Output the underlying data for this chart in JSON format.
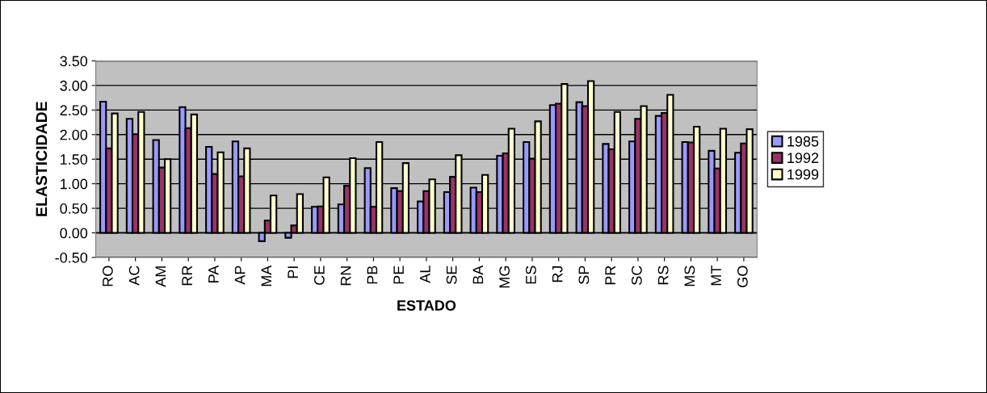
{
  "chart_data": {
    "type": "bar",
    "xlabel": "ESTADO",
    "ylabel": "ELASTICIDADE",
    "categories": [
      "RO",
      "AC",
      "AM",
      "RR",
      "PA",
      "AP",
      "MA",
      "PI",
      "CE",
      "RN",
      "PB",
      "PE",
      "AL",
      "SE",
      "BA",
      "MG",
      "ES",
      "RJ",
      "SP",
      "PR",
      "SC",
      "RS",
      "MS",
      "MT",
      "GO"
    ],
    "series": [
      {
        "name": "1985",
        "color": "#9999ff",
        "values": [
          2.67,
          2.32,
          1.89,
          2.56,
          1.75,
          1.86,
          -0.17,
          -0.1,
          0.53,
          0.58,
          1.32,
          0.91,
          0.64,
          0.83,
          0.92,
          1.57,
          1.85,
          2.6,
          2.66,
          1.81,
          1.86,
          2.38,
          1.85,
          1.67,
          1.63
        ]
      },
      {
        "name": "1992",
        "color": "#993366",
        "values": [
          1.72,
          2.01,
          1.33,
          2.13,
          1.2,
          1.15,
          0.25,
          0.15,
          0.54,
          0.96,
          0.53,
          0.85,
          0.85,
          1.14,
          0.83,
          1.62,
          1.51,
          2.63,
          2.58,
          1.7,
          2.32,
          2.44,
          1.84,
          1.31,
          1.82
        ]
      },
      {
        "name": "1999",
        "color": "#ffffcc",
        "values": [
          2.43,
          2.46,
          1.5,
          2.41,
          1.64,
          1.72,
          0.76,
          0.79,
          1.13,
          1.52,
          1.85,
          1.42,
          1.09,
          1.58,
          1.18,
          2.12,
          2.27,
          3.03,
          3.09,
          2.46,
          2.58,
          2.81,
          2.16,
          2.12,
          2.11
        ]
      }
    ],
    "ylim": [
      -0.5,
      3.5
    ],
    "yticks": [
      {
        "value": -0.5,
        "label": "-0.50"
      },
      {
        "value": 0,
        "label": "0.00"
      },
      {
        "value": 0.5,
        "label": "0.50"
      },
      {
        "value": 1,
        "label": "1.00"
      },
      {
        "value": 1.5,
        "label": "1.50"
      },
      {
        "value": 2,
        "label": "2.00"
      },
      {
        "value": 2.5,
        "label": "2.50"
      },
      {
        "value": 3,
        "label": "3.00"
      },
      {
        "value": 3.5,
        "label": "3.50"
      }
    ],
    "grid": "y",
    "legend": "right"
  }
}
